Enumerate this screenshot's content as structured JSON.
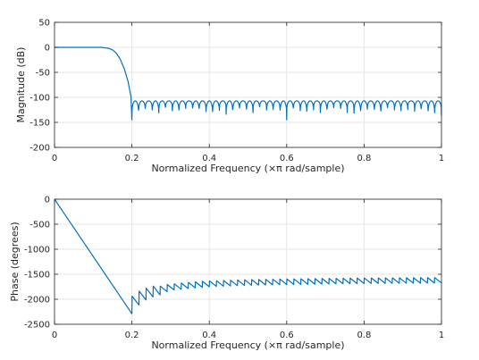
{
  "chart_data": [
    {
      "type": "line",
      "xlabel": "Normalized Frequency (×π rad/sample)",
      "ylabel": "Magnitude (dB)",
      "xlim": [
        0,
        1
      ],
      "ylim": [
        -200,
        50
      ],
      "xticks": [
        0,
        0.2,
        0.4,
        0.6,
        0.8,
        1
      ],
      "xtick_labels": [
        "0",
        "0.2",
        "0.4",
        "0.6",
        "0.8",
        "1"
      ],
      "yticks": [
        50,
        0,
        -50,
        -100,
        -150,
        -200
      ],
      "ytick_labels": [
        "50",
        "0",
        "-50",
        "-100",
        "-150",
        "-200"
      ],
      "grid": true,
      "series": [
        {
          "color": "#0072bd",
          "x": [
            0,
            0.05,
            0.1,
            0.12,
            0.14,
            0.15,
            0.16,
            0.17,
            0.18,
            0.19,
            0.195,
            0.2,
            0.21,
            0.25,
            0.3,
            0.35,
            0.4,
            0.45,
            0.5,
            0.55,
            0.6,
            0.65,
            0.7,
            0.75,
            0.8,
            0.85,
            0.9,
            0.95,
            1
          ],
          "y": [
            0,
            0,
            0,
            0,
            -2,
            -5,
            -12,
            -24,
            -42,
            -68,
            -88,
            -108,
            -110,
            -110,
            -110,
            -110,
            -110,
            -110,
            -110,
            -110,
            -110,
            -110,
            -110,
            -110,
            -110,
            -110,
            -110,
            -110,
            -110
          ],
          "ripple": {
            "x_start": 0.2,
            "count": 46,
            "ceiling": -107,
            "null_floor": -145
          }
        }
      ]
    },
    {
      "type": "line",
      "xlabel": "Normalized Frequency (×π rad/sample)",
      "ylabel": "Phase (degrees)",
      "xlim": [
        0,
        1
      ],
      "ylim": [
        -2500,
        0
      ],
      "xticks": [
        0,
        0.2,
        0.4,
        0.6,
        0.8,
        1
      ],
      "xtick_labels": [
        "0",
        "0.2",
        "0.4",
        "0.6",
        "0.8",
        "1"
      ],
      "yticks": [
        0,
        -500,
        -1000,
        -1500,
        -2000,
        -2500
      ],
      "ytick_labels": [
        "0",
        "-500",
        "-1000",
        "-1500",
        "-2000",
        "-2500"
      ],
      "grid": true,
      "series": [
        {
          "color": "#0072bd",
          "x": [
            0,
            0.2,
            0.21,
            0.22,
            0.25,
            0.3,
            0.35,
            0.4,
            0.5,
            0.6,
            0.7,
            0.8,
            0.9,
            1
          ],
          "y": [
            0,
            -2290,
            -2000,
            -1950,
            -1850,
            -1760,
            -1720,
            -1690,
            -1665,
            -1650,
            -1640,
            -1630,
            -1625,
            -1620
          ],
          "sawtooth": {
            "x_start": 0.2,
            "count": 44,
            "drop": 110
          }
        }
      ]
    }
  ]
}
